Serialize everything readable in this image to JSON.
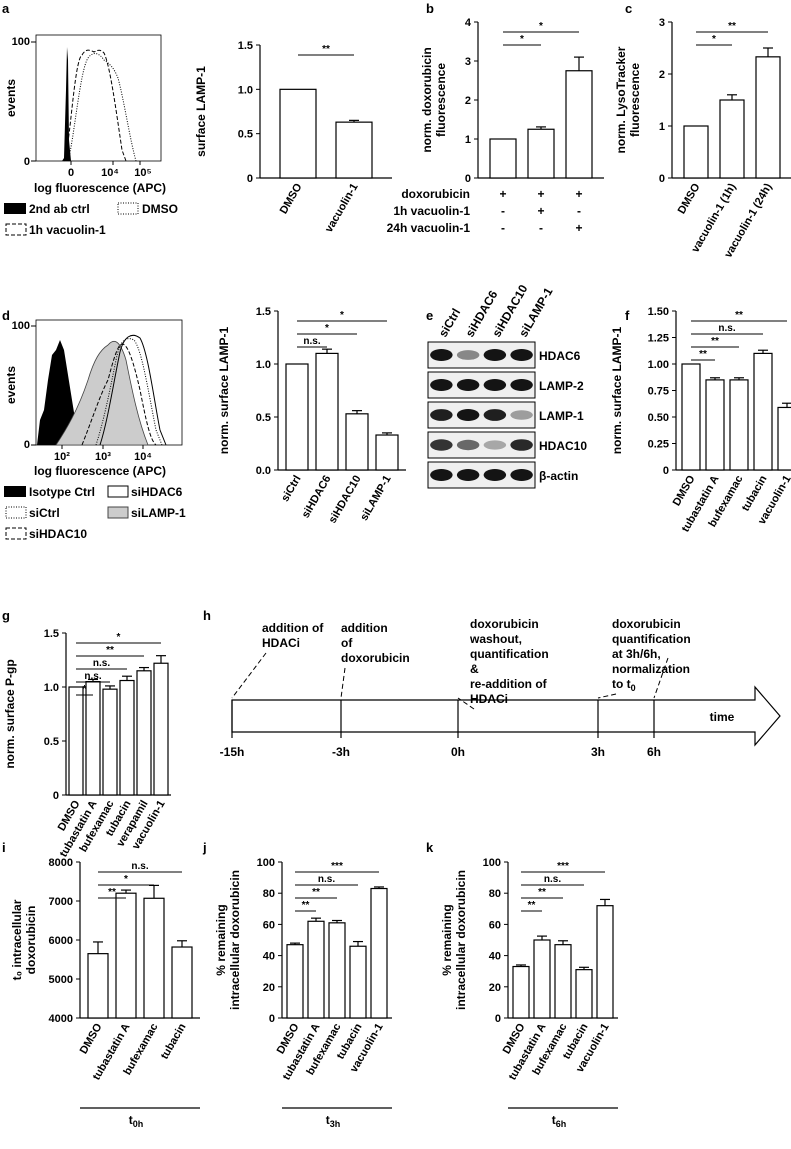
{
  "panel_labels": {
    "a": "a",
    "b": "b",
    "c": "c",
    "d": "d",
    "e": "e",
    "f": "f",
    "g": "g",
    "h": "h",
    "i": "i",
    "j": "j",
    "k": "k"
  },
  "histograms": {
    "a": {
      "ylabel": "events",
      "xlabel": "log fluorescence (APC)",
      "y_ticks": [
        "0",
        "100"
      ],
      "x_ticks": [
        "0",
        "10⁴",
        "10⁵"
      ],
      "legend": [
        "2nd ab ctrl",
        "DMSO",
        "1h vacuolin-1"
      ]
    },
    "d": {
      "ylabel": "events",
      "xlabel": "log fluorescence (APC)",
      "y_ticks": [
        "0",
        "100"
      ],
      "x_ticks": [
        "10²",
        "10³",
        "10⁴"
      ],
      "legend": [
        "Isotype Ctrl",
        "siHDAC6",
        "siCtrl",
        "siLAMP-1",
        "siHDAC10"
      ]
    }
  },
  "chart_data": [
    {
      "id": "a",
      "type": "bar",
      "ylabel": "surface LAMP-1",
      "categories": [
        "DMSO",
        "vacuolin-1"
      ],
      "values": [
        1.0,
        0.63
      ],
      "errors": [
        0,
        0.02
      ],
      "ylim": [
        0,
        1.5
      ],
      "yticks": [
        "0",
        "0.5",
        "1.0",
        "1.5"
      ],
      "significance": [
        {
          "from": 0,
          "to": 1,
          "label": "**"
        }
      ]
    },
    {
      "id": "b",
      "type": "bar",
      "ylabel": "norm. doxorubicin fluorescence",
      "categories": [
        "",
        "",
        ""
      ],
      "values": [
        1.0,
        1.25,
        2.75
      ],
      "errors": [
        0,
        0.06,
        0.35
      ],
      "ylim": [
        0,
        4
      ],
      "yticks": [
        "0",
        "1",
        "2",
        "3",
        "4"
      ],
      "significance": [
        {
          "from": 0,
          "to": 1,
          "label": "*"
        },
        {
          "from": 0,
          "to": 2,
          "label": "*"
        }
      ],
      "condition_table": {
        "rows": [
          {
            "label": "doxorubicin",
            "values": [
              "+",
              "+",
              "+"
            ]
          },
          {
            "label": "1h vacuolin-1",
            "values": [
              "-",
              "+",
              "-"
            ]
          },
          {
            "label": "24h vacuolin-1",
            "values": [
              "-",
              "-",
              "+"
            ]
          }
        ]
      }
    },
    {
      "id": "c",
      "type": "bar",
      "ylabel": "norm. LysoTracker fluorescence",
      "categories": [
        "DMSO",
        "vacuolin-1 (1h)",
        "vacuolin-1 (24h)"
      ],
      "values": [
        1.0,
        1.5,
        2.33
      ],
      "errors": [
        0,
        0.1,
        0.17
      ],
      "ylim": [
        0,
        3
      ],
      "yticks": [
        "0",
        "1",
        "2",
        "3"
      ],
      "significance": [
        {
          "from": 0,
          "to": 1,
          "label": "*"
        },
        {
          "from": 0,
          "to": 2,
          "label": "**"
        }
      ]
    },
    {
      "id": "d",
      "type": "bar",
      "ylabel": "norm. surface LAMP-1",
      "categories": [
        "siCtrl",
        "siHDAC6",
        "siHDAC10",
        "siLAMP-1"
      ],
      "values": [
        1.0,
        1.1,
        0.53,
        0.33
      ],
      "errors": [
        0,
        0.04,
        0.03,
        0.02
      ],
      "ylim": [
        0,
        1.5
      ],
      "yticks": [
        "0.0",
        "0.5",
        "1.0",
        "1.5"
      ],
      "significance": [
        {
          "from": 0,
          "to": 1,
          "label": "n.s."
        },
        {
          "from": 0,
          "to": 2,
          "label": "*"
        },
        {
          "from": 0,
          "to": 3,
          "label": "*"
        }
      ]
    },
    {
      "id": "f",
      "type": "bar",
      "ylabel": "norm. surface LAMP-1",
      "categories": [
        "DMSO",
        "tubastatin A",
        "bufexamac",
        "tubacin",
        "vacuolin-1"
      ],
      "values": [
        1.0,
        0.85,
        0.85,
        1.1,
        0.59
      ],
      "errors": [
        0,
        0.02,
        0.02,
        0.03,
        0.04
      ],
      "ylim": [
        0,
        1.5
      ],
      "yticks": [
        "0",
        "0.25",
        "0.50",
        "0.75",
        "1.00",
        "1.25",
        "1.50"
      ],
      "significance": [
        {
          "from": 0,
          "to": 1,
          "label": "**"
        },
        {
          "from": 0,
          "to": 2,
          "label": "**"
        },
        {
          "from": 0,
          "to": 3,
          "label": "n.s."
        },
        {
          "from": 0,
          "to": 4,
          "label": "**"
        }
      ]
    },
    {
      "id": "g",
      "type": "bar",
      "ylabel": "norm. surface P-gp",
      "categories": [
        "DMSO",
        "tubastatin A",
        "bufexamac",
        "tubacin",
        "verapamil",
        "vacuolin-1"
      ],
      "values": [
        1.0,
        1.05,
        0.98,
        1.06,
        1.15,
        1.22
      ],
      "errors": [
        0,
        0.02,
        0.03,
        0.04,
        0.03,
        0.07
      ],
      "ylim": [
        0,
        1.5
      ],
      "yticks": [
        "0",
        "0.5",
        "1.0",
        "1.5"
      ],
      "significance": [
        {
          "from": 0,
          "to": 1,
          "label": "*"
        },
        {
          "from": 0,
          "to": 2,
          "label": "n.s."
        },
        {
          "from": 0,
          "to": 3,
          "label": "n.s."
        },
        {
          "from": 0,
          "to": 4,
          "label": "**"
        },
        {
          "from": 0,
          "to": 5,
          "label": "*"
        }
      ]
    },
    {
      "id": "i",
      "type": "bar",
      "ylabel": "t₀ intracellular doxorubicin",
      "categories": [
        "DMSO",
        "tubastatin A",
        "bufexamac",
        "tubacin"
      ],
      "values": [
        5650,
        7200,
        7070,
        5820
      ],
      "errors": [
        300,
        80,
        330,
        160
      ],
      "ylim": [
        4000,
        8000
      ],
      "yticks": [
        "4000",
        "5000",
        "6000",
        "7000",
        "8000"
      ],
      "significance": [
        {
          "from": 0,
          "to": 1,
          "label": "**"
        },
        {
          "from": 0,
          "to": 2,
          "label": "*"
        },
        {
          "from": 0,
          "to": 3,
          "label": "n.s."
        }
      ],
      "group_label": "t",
      "group_sub": "0h"
    },
    {
      "id": "j",
      "type": "bar",
      "ylabel": "% remaining intracellular doxorubicin",
      "categories": [
        "DMSO",
        "tubastatin A",
        "bufexamac",
        "tubacin",
        "vacuolin-1"
      ],
      "values": [
        47,
        62,
        61,
        46,
        83
      ],
      "errors": [
        1,
        2,
        1.5,
        3,
        1
      ],
      "ylim": [
        0,
        100
      ],
      "yticks": [
        "0",
        "20",
        "40",
        "60",
        "80",
        "100"
      ],
      "significance": [
        {
          "from": 0,
          "to": 1,
          "label": "**"
        },
        {
          "from": 0,
          "to": 2,
          "label": "**"
        },
        {
          "from": 0,
          "to": 3,
          "label": "n.s."
        },
        {
          "from": 0,
          "to": 4,
          "label": "***"
        }
      ],
      "group_label": "t",
      "group_sub": "3h"
    },
    {
      "id": "k",
      "type": "bar",
      "ylabel": "% remaining intracellular doxorubicin",
      "categories": [
        "DMSO",
        "tubastatin A",
        "bufexamac",
        "tubacin",
        "vacuolin-1"
      ],
      "values": [
        33,
        50,
        47,
        31,
        72
      ],
      "errors": [
        1,
        2.5,
        2.5,
        1.5,
        4
      ],
      "ylim": [
        0,
        100
      ],
      "yticks": [
        "0",
        "20",
        "40",
        "60",
        "80",
        "100"
      ],
      "significance": [
        {
          "from": 0,
          "to": 1,
          "label": "**"
        },
        {
          "from": 0,
          "to": 2,
          "label": "**"
        },
        {
          "from": 0,
          "to": 3,
          "label": "n.s."
        },
        {
          "from": 0,
          "to": 4,
          "label": "***"
        }
      ],
      "group_label": "t",
      "group_sub": "6h"
    }
  ],
  "western_blot": {
    "lanes": [
      "siCtrl",
      "siHDAC6",
      "siHDAC10",
      "siLAMP-1"
    ],
    "bands": [
      "HDAC6",
      "LAMP-2",
      "LAMP-1",
      "HDAC10",
      "β-actin"
    ],
    "intensities": [
      [
        1.0,
        0.45,
        1.0,
        1.0
      ],
      [
        1.0,
        1.0,
        1.0,
        1.0
      ],
      [
        0.95,
        1.0,
        0.95,
        0.35
      ],
      [
        0.85,
        0.6,
        0.3,
        0.9
      ],
      [
        1.0,
        1.0,
        1.0,
        1.0
      ]
    ]
  },
  "timeline": {
    "axis_label": "time",
    "ticks": [
      "-15h",
      "-3h",
      "0h",
      "3h",
      "6h"
    ],
    "events": [
      {
        "lines": [
          "addition of",
          "HDACi"
        ]
      },
      {
        "lines": [
          "addition",
          "of",
          "doxorubicin"
        ]
      },
      {
        "lines": [
          "doxorubicin",
          "washout,",
          "quantification",
          "&",
          "re-addition of",
          "HDACi"
        ]
      },
      {
        "lines": [
          "doxorubicin",
          "quantification",
          "at 3h/6h,",
          "normalization",
          "to t₀"
        ]
      }
    ]
  }
}
